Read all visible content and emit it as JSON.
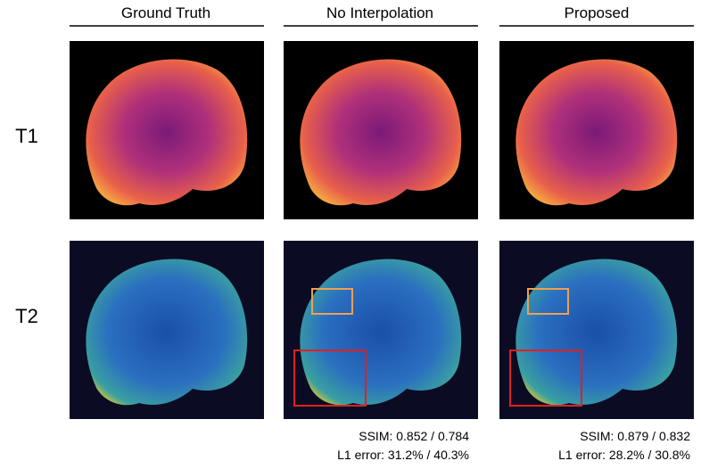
{
  "columns": [
    "Ground Truth",
    "No Interpolation",
    "Proposed"
  ],
  "rows": [
    "T1",
    "T2"
  ],
  "metrics": [
    [
      "SSIM: 0.852 / 0.784",
      "L1 error: 31.2% / 40.3%"
    ],
    [
      "SSIM: 0.879 / 0.832",
      "L1 error: 28.2% / 30.8%"
    ]
  ]
}
